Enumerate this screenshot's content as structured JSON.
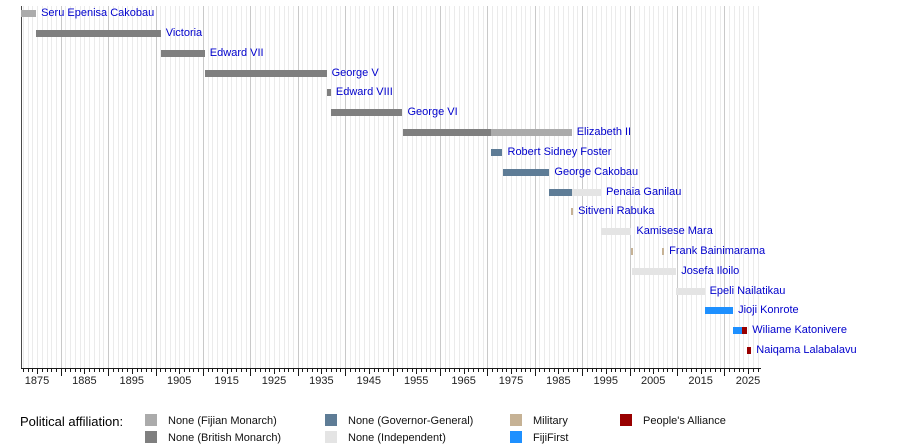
{
  "chart_data": {
    "type": "bar",
    "subtype": "gantt-timeline",
    "title": "",
    "xlabel": "",
    "ylabel": "",
    "x_axis": {
      "range": [
        1871.7,
        2027.7
      ],
      "ticks": [
        1875,
        1885,
        1895,
        1905,
        1915,
        1925,
        1935,
        1945,
        1955,
        1965,
        1975,
        1985,
        1995,
        2005,
        2015,
        2025
      ],
      "grid": "yearly"
    },
    "affiliation_colors": {
      "fijian_monarch": "#ababab",
      "british_monarch": "#7f7f7f",
      "governor_general": "#5e7c96",
      "independent": "#e4e4e4",
      "military": "#c6b295",
      "fijifirst": "#1e90ff",
      "peoples_alliance": "#990000"
    },
    "label_color": "#0000cc",
    "rows": [
      {
        "label": "Seru Epenisa Cakobau",
        "segments": [
          {
            "start": 1871.7,
            "end": 1874.8,
            "affiliation": "fijian_monarch"
          }
        ]
      },
      {
        "label": "Victoria",
        "segments": [
          {
            "start": 1874.8,
            "end": 1901.1,
            "affiliation": "british_monarch"
          }
        ]
      },
      {
        "label": "Edward VII",
        "segments": [
          {
            "start": 1901.1,
            "end": 1910.4,
            "affiliation": "british_monarch"
          }
        ]
      },
      {
        "label": "George V",
        "segments": [
          {
            "start": 1910.4,
            "end": 1936.1,
            "affiliation": "british_monarch"
          }
        ]
      },
      {
        "label": "Edward VIII",
        "segments": [
          {
            "start": 1936.1,
            "end": 1937.0,
            "affiliation": "british_monarch"
          }
        ]
      },
      {
        "label": "George VI",
        "segments": [
          {
            "start": 1937.0,
            "end": 1952.1,
            "affiliation": "british_monarch"
          }
        ]
      },
      {
        "label": "Elizabeth II",
        "segments": [
          {
            "start": 1952.1,
            "end": 1970.8,
            "affiliation": "british_monarch"
          },
          {
            "start": 1970.8,
            "end": 1987.8,
            "affiliation": "fijian_monarch"
          }
        ]
      },
      {
        "label": "Robert Sidney Foster",
        "segments": [
          {
            "start": 1970.8,
            "end": 1973.2,
            "affiliation": "governor_general"
          }
        ]
      },
      {
        "label": "George Cakobau",
        "segments": [
          {
            "start": 1973.2,
            "end": 1983.1,
            "affiliation": "governor_general"
          }
        ]
      },
      {
        "label": "Penaia Ganilau",
        "segments": [
          {
            "start": 1983.1,
            "end": 1987.9,
            "affiliation": "governor_general"
          },
          {
            "start": 1987.9,
            "end": 1994.0,
            "affiliation": "independent"
          }
        ]
      },
      {
        "label": "Sitiveni Rabuka",
        "segments": [
          {
            "start": 1987.7,
            "end": 1988.1,
            "affiliation": "military"
          }
        ]
      },
      {
        "label": "Kamisese Mara",
        "segments": [
          {
            "start": 1993.95,
            "end": 2000.4,
            "affiliation": "independent"
          }
        ]
      },
      {
        "label": "Frank Bainimarama",
        "segments": [
          {
            "start": 2000.4,
            "end": 2000.8,
            "affiliation": "military"
          },
          {
            "start": 2006.9,
            "end": 2007.3,
            "affiliation": "military"
          }
        ]
      },
      {
        "label": "Josefa Iloilo",
        "segments": [
          {
            "start": 2000.5,
            "end": 2009.85,
            "affiliation": "independent"
          }
        ]
      },
      {
        "label": "Epeli Nailatikau",
        "segments": [
          {
            "start": 2009.85,
            "end": 2015.85,
            "affiliation": "independent"
          }
        ]
      },
      {
        "label": "Jioji Konrote",
        "segments": [
          {
            "start": 2015.85,
            "end": 2021.85,
            "affiliation": "fijifirst"
          }
        ]
      },
      {
        "label": "Wiliame Katonivere",
        "segments": [
          {
            "start": 2021.85,
            "end": 2023.7,
            "affiliation": "fijifirst"
          },
          {
            "start": 2023.7,
            "end": 2024.85,
            "affiliation": "peoples_alliance"
          }
        ]
      },
      {
        "label": "Naiqama Lalabalavu",
        "segments": [
          {
            "start": 2024.85,
            "end": 2025.7,
            "affiliation": "peoples_alliance"
          }
        ]
      }
    ]
  },
  "legend": {
    "heading": "Political affiliation:",
    "items": [
      {
        "label": "None (Fijian Monarch)",
        "key": "fijian_monarch",
        "col": 0,
        "row": 0
      },
      {
        "label": "None (British Monarch)",
        "key": "british_monarch",
        "col": 0,
        "row": 1
      },
      {
        "label": "None (Governor-General)",
        "key": "governor_general",
        "col": 1,
        "row": 0
      },
      {
        "label": "None (Independent)",
        "key": "independent",
        "col": 1,
        "row": 1
      },
      {
        "label": "Military",
        "key": "military",
        "col": 2,
        "row": 0
      },
      {
        "label": "FijiFirst",
        "key": "fijifirst",
        "col": 2,
        "row": 1
      },
      {
        "label": "People's Alliance",
        "key": "peoples_alliance",
        "col": 3,
        "row": 0
      }
    ]
  }
}
